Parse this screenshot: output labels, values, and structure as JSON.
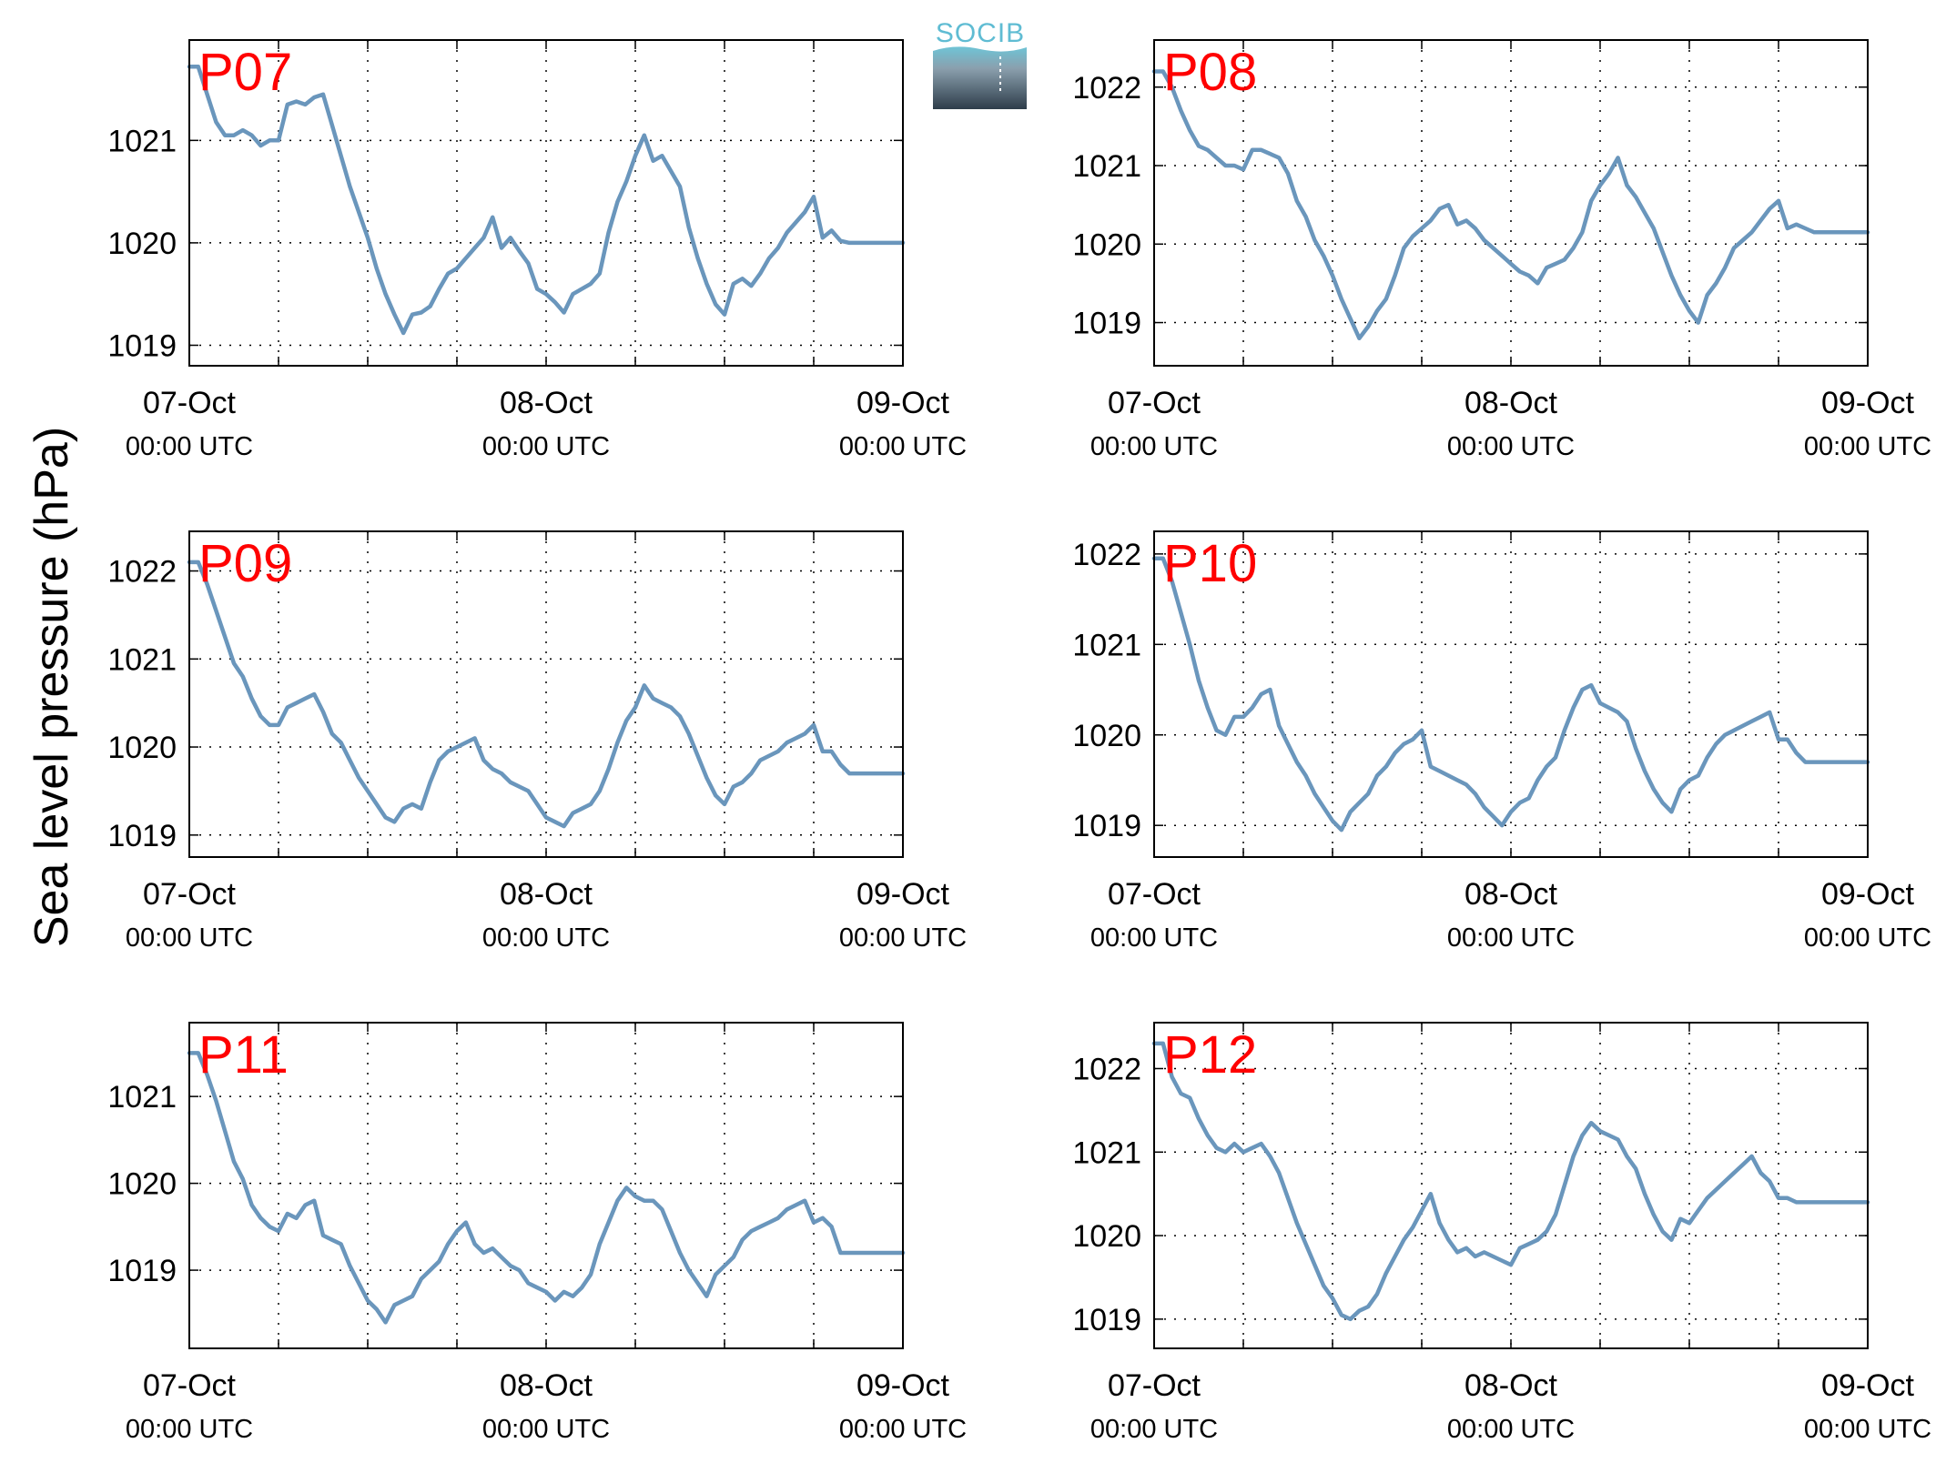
{
  "logo": {
    "text": "SOCIB"
  },
  "ylabel": "Sea level pressure (hPa)",
  "colors": {
    "line": "#6a96bc",
    "label": "#ff0000",
    "grid": "#000000"
  },
  "x_ticks": [
    {
      "t": 0,
      "date": "07-Oct",
      "time": "00:00 UTC"
    },
    {
      "t": 24,
      "date": "08-Oct",
      "time": "00:00 UTC"
    },
    {
      "t": 48,
      "date": "09-Oct",
      "time": "00:00 UTC"
    }
  ],
  "chart_data": [
    {
      "type": "line",
      "name": "P07",
      "ylim": [
        1018.8,
        1021.98
      ],
      "yticks": [
        1019,
        1020,
        1021
      ],
      "xlim": [
        0,
        48
      ],
      "x": [
        0,
        0.6,
        1.2,
        1.8,
        2.4,
        3,
        3.6,
        4.2,
        4.8,
        5.4,
        6,
        6.6,
        7.2,
        7.8,
        8.4,
        9,
        9.6,
        10.2,
        10.8,
        11.4,
        12,
        12.6,
        13.2,
        13.8,
        14.4,
        15,
        15.6,
        16.2,
        16.8,
        17.4,
        18,
        18.6,
        19.2,
        19.8,
        20.4,
        21,
        21.6,
        22.2,
        22.8,
        23.4,
        24,
        24.6,
        25.2,
        25.8,
        26.4,
        27,
        27.6,
        28.2,
        28.8,
        29.4,
        30,
        30.6,
        31.2,
        31.8,
        32.4,
        33,
        33.6,
        34.2,
        34.8,
        35.4,
        36,
        36.6,
        37.2,
        37.8,
        38.4,
        39,
        39.6,
        40.2,
        40.8,
        41.4,
        42,
        42.6,
        43.2,
        43.8,
        44.4,
        45,
        45.6,
        46.2,
        46.8,
        47.4,
        48
      ],
      "y": [
        1021.72,
        1021.72,
        1021.45,
        1021.18,
        1021.05,
        1021.05,
        1021.1,
        1021.05,
        1020.95,
        1021,
        1021,
        1021.35,
        1021.38,
        1021.35,
        1021.42,
        1021.45,
        1021.15,
        1020.85,
        1020.55,
        1020.3,
        1020.05,
        1019.75,
        1019.5,
        1019.3,
        1019.12,
        1019.3,
        1019.32,
        1019.38,
        1019.55,
        1019.7,
        1019.75,
        1019.85,
        1019.95,
        1020.05,
        1020.25,
        1019.95,
        1020.05,
        1019.92,
        1019.8,
        1019.55,
        1019.5,
        1019.42,
        1019.32,
        1019.5,
        1019.55,
        1019.6,
        1019.7,
        1020.1,
        1020.4,
        1020.6,
        1020.85,
        1021.05,
        1020.8,
        1020.85,
        1020.7,
        1020.55,
        1020.15,
        1019.85,
        1019.6,
        1019.4,
        1019.3,
        1019.6,
        1019.65,
        1019.58,
        1019.7,
        1019.85,
        1019.95,
        1020.1,
        1020.2,
        1020.3,
        1020.45,
        1020.05,
        1020.12,
        1020.02,
        1020,
        1020,
        1020,
        1020,
        1020,
        1020,
        1020
      ]
    },
    {
      "type": "line",
      "name": "P08",
      "ylim": [
        1018.45,
        1022.6
      ],
      "yticks": [
        1019,
        1020,
        1021,
        1022
      ],
      "xlim": [
        0,
        48
      ],
      "x": [
        0,
        0.6,
        1.2,
        1.8,
        2.4,
        3,
        3.6,
        4.2,
        4.8,
        5.4,
        6,
        6.6,
        7.2,
        7.8,
        8.4,
        9,
        9.6,
        10.2,
        10.8,
        11.4,
        12,
        12.6,
        13.2,
        13.8,
        14.4,
        15,
        15.6,
        16.2,
        16.8,
        17.4,
        18,
        18.6,
        19.2,
        19.8,
        20.4,
        21,
        21.6,
        22.2,
        22.8,
        23.4,
        24,
        24.6,
        25.2,
        25.8,
        26.4,
        27,
        27.6,
        28.2,
        28.8,
        29.4,
        30,
        30.6,
        31.2,
        31.8,
        32.4,
        33,
        33.6,
        34.2,
        34.8,
        35.4,
        36,
        36.6,
        37.2,
        37.8,
        38.4,
        39,
        39.6,
        40.2,
        40.8,
        41.4,
        42,
        42.6,
        43.2,
        43.8,
        44.4,
        45,
        45.6,
        46.2,
        46.8,
        47.4,
        48
      ],
      "y": [
        1022.2,
        1022.2,
        1022,
        1021.7,
        1021.45,
        1021.25,
        1021.2,
        1021.1,
        1021,
        1021,
        1020.95,
        1021.2,
        1021.2,
        1021.15,
        1021.1,
        1020.9,
        1020.55,
        1020.35,
        1020.05,
        1019.85,
        1019.6,
        1019.3,
        1019.05,
        1018.8,
        1018.95,
        1019.15,
        1019.3,
        1019.6,
        1019.95,
        1020.1,
        1020.2,
        1020.3,
        1020.45,
        1020.5,
        1020.25,
        1020.3,
        1020.2,
        1020.05,
        1019.95,
        1019.85,
        1019.75,
        1019.65,
        1019.6,
        1019.5,
        1019.7,
        1019.75,
        1019.8,
        1019.95,
        1020.15,
        1020.55,
        1020.75,
        1020.9,
        1021.1,
        1020.75,
        1020.6,
        1020.4,
        1020.2,
        1019.9,
        1019.6,
        1019.35,
        1019.15,
        1019,
        1019.35,
        1019.5,
        1019.7,
        1019.95,
        1020.05,
        1020.15,
        1020.3,
        1020.45,
        1020.55,
        1020.2,
        1020.25,
        1020.2,
        1020.15,
        1020.15,
        1020.15,
        1020.15,
        1020.15,
        1020.15,
        1020.15
      ]
    },
    {
      "type": "line",
      "name": "P09",
      "ylim": [
        1018.75,
        1022.45
      ],
      "yticks": [
        1019,
        1020,
        1021,
        1022
      ],
      "xlim": [
        0,
        48
      ],
      "x": [
        0,
        0.6,
        1.2,
        1.8,
        2.4,
        3,
        3.6,
        4.2,
        4.8,
        5.4,
        6,
        6.6,
        7.2,
        7.8,
        8.4,
        9,
        9.6,
        10.2,
        10.8,
        11.4,
        12,
        12.6,
        13.2,
        13.8,
        14.4,
        15,
        15.6,
        16.2,
        16.8,
        17.4,
        18,
        18.6,
        19.2,
        19.8,
        20.4,
        21,
        21.6,
        22.2,
        22.8,
        23.4,
        24,
        24.6,
        25.2,
        25.8,
        26.4,
        27,
        27.6,
        28.2,
        28.8,
        29.4,
        30,
        30.6,
        31.2,
        31.8,
        32.4,
        33,
        33.6,
        34.2,
        34.8,
        35.4,
        36,
        36.6,
        37.2,
        37.8,
        38.4,
        39,
        39.6,
        40.2,
        40.8,
        41.4,
        42,
        42.6,
        43.2,
        43.8,
        44.4,
        45,
        45.6,
        46.2,
        46.8,
        47.4,
        48
      ],
      "y": [
        1022.1,
        1022.1,
        1021.85,
        1021.55,
        1021.25,
        1020.95,
        1020.8,
        1020.55,
        1020.35,
        1020.25,
        1020.25,
        1020.45,
        1020.5,
        1020.55,
        1020.6,
        1020.4,
        1020.15,
        1020.05,
        1019.85,
        1019.65,
        1019.5,
        1019.35,
        1019.2,
        1019.15,
        1019.3,
        1019.35,
        1019.3,
        1019.6,
        1019.85,
        1019.95,
        1020,
        1020.05,
        1020.1,
        1019.85,
        1019.75,
        1019.7,
        1019.6,
        1019.55,
        1019.5,
        1019.35,
        1019.2,
        1019.15,
        1019.1,
        1019.25,
        1019.3,
        1019.35,
        1019.5,
        1019.75,
        1020.05,
        1020.3,
        1020.45,
        1020.7,
        1020.55,
        1020.5,
        1020.45,
        1020.35,
        1020.15,
        1019.9,
        1019.65,
        1019.45,
        1019.35,
        1019.55,
        1019.6,
        1019.7,
        1019.85,
        1019.9,
        1019.95,
        1020.05,
        1020.1,
        1020.15,
        1020.25,
        1019.95,
        1019.95,
        1019.8,
        1019.7,
        1019.7,
        1019.7,
        1019.7,
        1019.7,
        1019.7,
        1019.7
      ]
    },
    {
      "type": "line",
      "name": "P10",
      "ylim": [
        1018.65,
        1022.25
      ],
      "yticks": [
        1019,
        1020,
        1021,
        1022
      ],
      "xlim": [
        0,
        48
      ],
      "x": [
        0,
        0.6,
        1.2,
        1.8,
        2.4,
        3,
        3.6,
        4.2,
        4.8,
        5.4,
        6,
        6.6,
        7.2,
        7.8,
        8.4,
        9,
        9.6,
        10.2,
        10.8,
        11.4,
        12,
        12.6,
        13.2,
        13.8,
        14.4,
        15,
        15.6,
        16.2,
        16.8,
        17.4,
        18,
        18.6,
        19.2,
        19.8,
        20.4,
        21,
        21.6,
        22.2,
        22.8,
        23.4,
        24,
        24.6,
        25.2,
        25.8,
        26.4,
        27,
        27.6,
        28.2,
        28.8,
        29.4,
        30,
        30.6,
        31.2,
        31.8,
        32.4,
        33,
        33.6,
        34.2,
        34.8,
        35.4,
        36,
        36.6,
        37.2,
        37.8,
        38.4,
        39,
        39.6,
        40.2,
        40.8,
        41.4,
        42,
        42.6,
        43.2,
        43.8,
        44.4,
        45,
        45.6,
        46.2,
        46.8,
        47.4,
        48
      ],
      "y": [
        1021.95,
        1021.95,
        1021.7,
        1021.35,
        1021,
        1020.6,
        1020.3,
        1020.05,
        1020,
        1020.2,
        1020.2,
        1020.3,
        1020.45,
        1020.5,
        1020.1,
        1019.9,
        1019.7,
        1019.55,
        1019.35,
        1019.2,
        1019.05,
        1018.95,
        1019.15,
        1019.25,
        1019.35,
        1019.55,
        1019.65,
        1019.8,
        1019.9,
        1019.95,
        1020.05,
        1019.65,
        1019.6,
        1019.55,
        1019.5,
        1019.45,
        1019.35,
        1019.2,
        1019.1,
        1019,
        1019.15,
        1019.25,
        1019.3,
        1019.5,
        1019.65,
        1019.75,
        1020.05,
        1020.3,
        1020.5,
        1020.55,
        1020.35,
        1020.3,
        1020.25,
        1020.15,
        1019.85,
        1019.6,
        1019.4,
        1019.25,
        1019.15,
        1019.4,
        1019.5,
        1019.55,
        1019.75,
        1019.9,
        1020,
        1020.05,
        1020.1,
        1020.15,
        1020.2,
        1020.25,
        1019.95,
        1019.95,
        1019.8,
        1019.7,
        1019.7,
        1019.7,
        1019.7,
        1019.7,
        1019.7,
        1019.7,
        1019.7
      ]
    },
    {
      "type": "line",
      "name": "P11",
      "ylim": [
        1018.1,
        1021.85
      ],
      "yticks": [
        1019,
        1020,
        1021
      ],
      "xlim": [
        0,
        48
      ],
      "x": [
        0,
        0.6,
        1.2,
        1.8,
        2.4,
        3,
        3.6,
        4.2,
        4.8,
        5.4,
        6,
        6.6,
        7.2,
        7.8,
        8.4,
        9,
        9.6,
        10.2,
        10.8,
        11.4,
        12,
        12.6,
        13.2,
        13.8,
        14.4,
        15,
        15.6,
        16.2,
        16.8,
        17.4,
        18,
        18.6,
        19.2,
        19.8,
        20.4,
        21,
        21.6,
        22.2,
        22.8,
        23.4,
        24,
        24.6,
        25.2,
        25.8,
        26.4,
        27,
        27.6,
        28.2,
        28.8,
        29.4,
        30,
        30.6,
        31.2,
        31.8,
        32.4,
        33,
        33.6,
        34.2,
        34.8,
        35.4,
        36,
        36.6,
        37.2,
        37.8,
        38.4,
        39,
        39.6,
        40.2,
        40.8,
        41.4,
        42,
        42.6,
        43.2,
        43.8,
        44.4,
        45,
        45.6,
        46.2,
        46.8,
        47.4,
        48
      ],
      "y": [
        1021.5,
        1021.5,
        1021.25,
        1020.95,
        1020.6,
        1020.25,
        1020.05,
        1019.75,
        1019.6,
        1019.5,
        1019.45,
        1019.65,
        1019.6,
        1019.75,
        1019.8,
        1019.4,
        1019.35,
        1019.3,
        1019.05,
        1018.85,
        1018.65,
        1018.55,
        1018.4,
        1018.6,
        1018.65,
        1018.7,
        1018.9,
        1019,
        1019.1,
        1019.3,
        1019.45,
        1019.55,
        1019.3,
        1019.2,
        1019.25,
        1019.15,
        1019.05,
        1019,
        1018.85,
        1018.8,
        1018.75,
        1018.65,
        1018.75,
        1018.7,
        1018.8,
        1018.95,
        1019.3,
        1019.55,
        1019.8,
        1019.95,
        1019.85,
        1019.8,
        1019.8,
        1019.7,
        1019.45,
        1019.2,
        1019,
        1018.85,
        1018.7,
        1018.95,
        1019.05,
        1019.15,
        1019.35,
        1019.45,
        1019.5,
        1019.55,
        1019.6,
        1019.7,
        1019.75,
        1019.8,
        1019.55,
        1019.6,
        1019.5,
        1019.2,
        1019.2,
        1019.2,
        1019.2,
        1019.2,
        1019.2,
        1019.2,
        1019.2
      ]
    },
    {
      "type": "line",
      "name": "P12",
      "ylim": [
        1018.65,
        1022.55
      ],
      "yticks": [
        1019,
        1020,
        1021,
        1022
      ],
      "xlim": [
        0,
        48
      ],
      "x": [
        0,
        0.6,
        1.2,
        1.8,
        2.4,
        3,
        3.6,
        4.2,
        4.8,
        5.4,
        6,
        6.6,
        7.2,
        7.8,
        8.4,
        9,
        9.6,
        10.2,
        10.8,
        11.4,
        12,
        12.6,
        13.2,
        13.8,
        14.4,
        15,
        15.6,
        16.2,
        16.8,
        17.4,
        18,
        18.6,
        19.2,
        19.8,
        20.4,
        21,
        21.6,
        22.2,
        22.8,
        23.4,
        24,
        24.6,
        25.2,
        25.8,
        26.4,
        27,
        27.6,
        28.2,
        28.8,
        29.4,
        30,
        30.6,
        31.2,
        31.8,
        32.4,
        33,
        33.6,
        34.2,
        34.8,
        35.4,
        36,
        36.6,
        37.2,
        37.8,
        38.4,
        39,
        39.6,
        40.2,
        40.8,
        41.4,
        42,
        42.6,
        43.2,
        43.8,
        44.4,
        45,
        45.6,
        46.2,
        46.8,
        47.4,
        48
      ],
      "y": [
        1022.3,
        1022.3,
        1021.9,
        1021.7,
        1021.65,
        1021.4,
        1021.2,
        1021.05,
        1021,
        1021.1,
        1021,
        1021.05,
        1021.1,
        1020.95,
        1020.75,
        1020.45,
        1020.15,
        1019.9,
        1019.65,
        1019.4,
        1019.25,
        1019.05,
        1019,
        1019.1,
        1019.15,
        1019.3,
        1019.55,
        1019.75,
        1019.95,
        1020.1,
        1020.3,
        1020.5,
        1020.15,
        1019.95,
        1019.8,
        1019.85,
        1019.75,
        1019.8,
        1019.75,
        1019.7,
        1019.65,
        1019.85,
        1019.9,
        1019.95,
        1020.05,
        1020.25,
        1020.6,
        1020.95,
        1021.2,
        1021.35,
        1021.25,
        1021.2,
        1021.15,
        1020.95,
        1020.8,
        1020.5,
        1020.25,
        1020.05,
        1019.95,
        1020.2,
        1020.15,
        1020.3,
        1020.45,
        1020.55,
        1020.65,
        1020.75,
        1020.85,
        1020.95,
        1020.75,
        1020.65,
        1020.45,
        1020.45,
        1020.4,
        1020.4,
        1020.4,
        1020.4,
        1020.4,
        1020.4,
        1020.4,
        1020.4,
        1020.4
      ]
    }
  ]
}
